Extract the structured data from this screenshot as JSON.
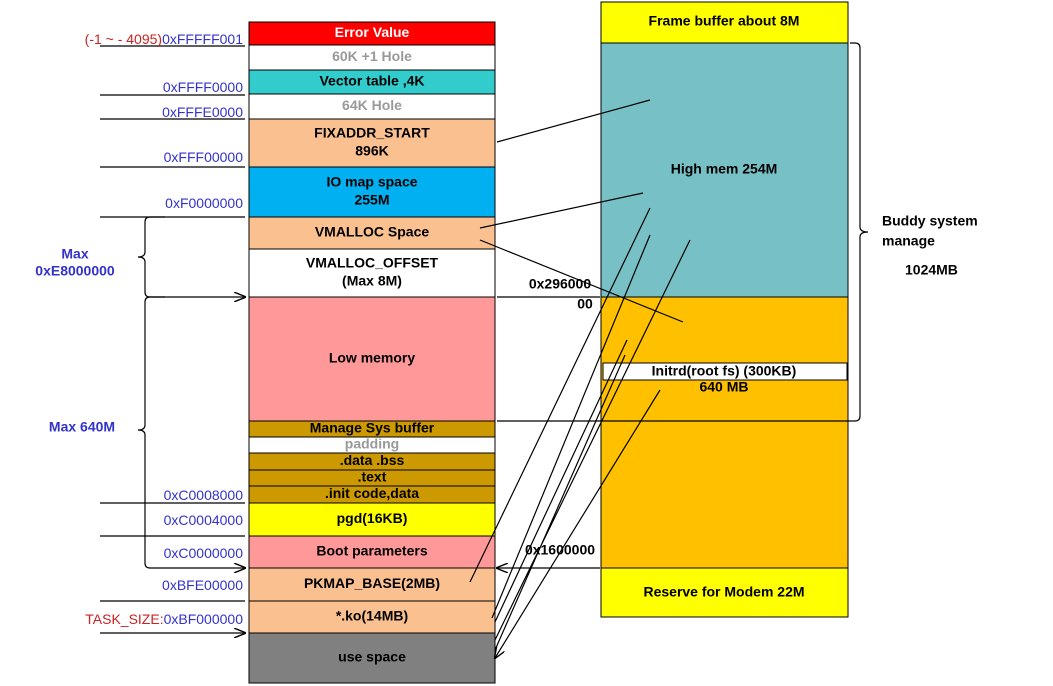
{
  "left_blocks": [
    {
      "lines": [
        "Error Value"
      ]
    },
    {
      "lines": [
        "60K +1 Hole"
      ]
    },
    {
      "lines": [
        "Vector table ,4K"
      ]
    },
    {
      "lines": [
        "64K Hole"
      ]
    },
    {
      "lines": [
        "FIXADDR_START",
        "896K"
      ]
    },
    {
      "lines": [
        "IO map space",
        "255M"
      ]
    },
    {
      "lines": [
        "VMALLOC Space"
      ]
    },
    {
      "lines": [
        "VMALLOC_OFFSET",
        "(Max 8M)"
      ]
    },
    {
      "lines": [
        "Low memory"
      ]
    },
    {
      "lines": [
        "Manage Sys buffer"
      ]
    },
    {
      "lines": [
        "padding"
      ]
    },
    {
      "lines": [
        ".data  .bss"
      ]
    },
    {
      "lines": [
        ".text"
      ]
    },
    {
      "lines": [
        ".init code,data"
      ]
    },
    {
      "lines": [
        "pgd(16KB)"
      ]
    },
    {
      "lines": [
        "Boot parameters"
      ]
    },
    {
      "lines": [
        "PKMAP_BASE(2MB)"
      ]
    },
    {
      "lines": [
        "*.ko(14MB)"
      ]
    },
    {
      "lines": [
        "use space"
      ]
    }
  ],
  "addresses": [
    {
      "prefix": "(-1 ~ - 4095)",
      "address": "0xFFFFF001"
    },
    {
      "address": "0xFFFF0000"
    },
    {
      "address": "0xFFFE0000"
    },
    {
      "address": "0xFFF00000"
    },
    {
      "address": "0xF0000000"
    },
    {
      "address": "0xC0008000"
    },
    {
      "address": "0xC0004000"
    },
    {
      "address": "0xC0000000"
    },
    {
      "address": "0xBFE00000"
    },
    {
      "prefix": "TASK_SIZE:",
      "address": "0xBF000000"
    }
  ],
  "ranges": [
    {
      "lines": [
        "Max",
        "0xE8000000"
      ]
    },
    {
      "lines": [
        "Max 640M"
      ]
    }
  ],
  "right_blocks": [
    {
      "label": "Frame buffer about 8M"
    },
    {
      "label": "High mem 254M"
    },
    {
      "label": "640 MB"
    },
    {
      "label": "Reserve for Modem 22M"
    }
  ],
  "initrd": "Initrd(root fs) (300KB)",
  "buddy": {
    "lines": [
      "Buddy system",
      "manage"
    ],
    "size": "1024MB"
  },
  "offsets": [
    {
      "lines": [
        "0x296000",
        "00"
      ]
    },
    {
      "lines": [
        "0x1600000"
      ]
    }
  ]
}
